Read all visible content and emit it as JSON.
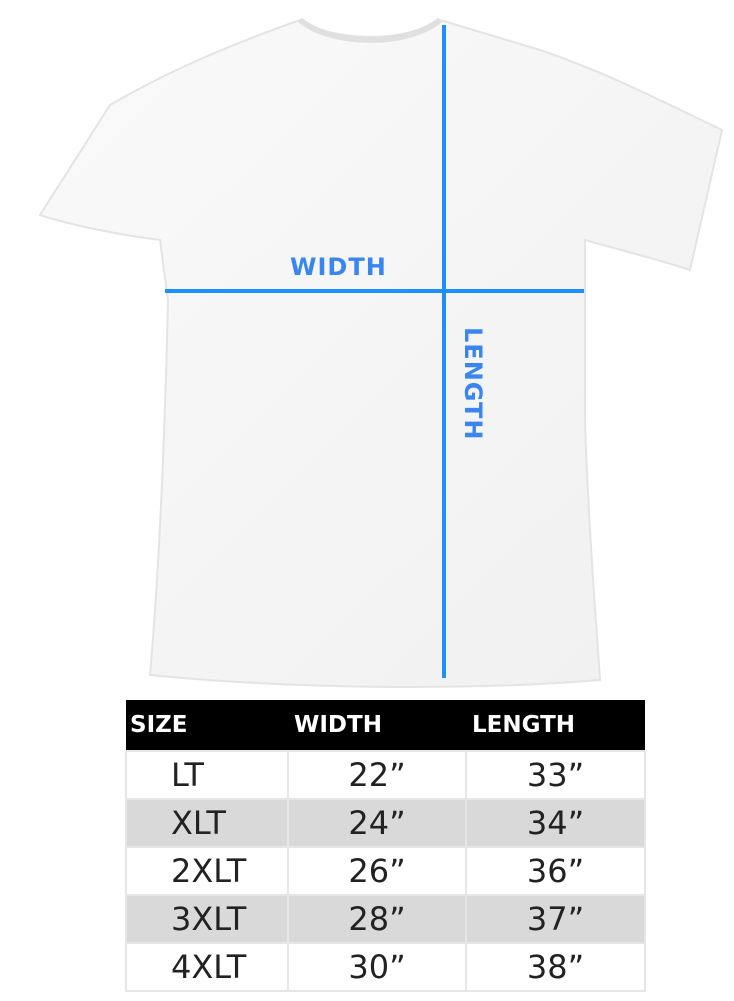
{
  "diagram": {
    "width_label": "WIDTH",
    "length_label": "LENGTH",
    "accent_color": "#1e8fff",
    "label_color": "#3a86f0"
  },
  "size_table": {
    "headers": [
      "SIZE",
      "WIDTH",
      "LENGTH"
    ],
    "rows": [
      [
        "LT",
        "22”",
        "33”"
      ],
      [
        "XLT",
        "24”",
        "34”"
      ],
      [
        "2XLT",
        "26”",
        "36”"
      ],
      [
        "3XLT",
        "28”",
        "37”"
      ],
      [
        "4XLT",
        "30”",
        "38”"
      ]
    ]
  }
}
